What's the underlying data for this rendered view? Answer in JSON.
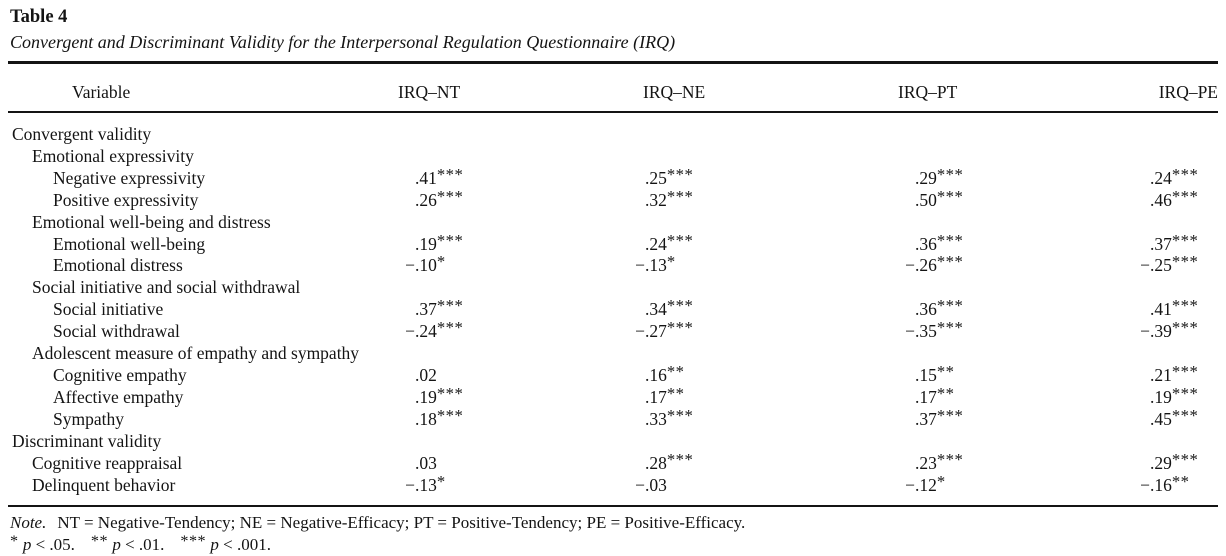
{
  "title": "Table 4",
  "caption": "Convergent and Discriminant Validity for the Interpersonal Regulation Questionnaire (IRQ)",
  "table": {
    "columns": [
      "Variable",
      "IRQ–NT",
      "IRQ–NE",
      "IRQ–PT",
      "IRQ–PE"
    ],
    "rows": [
      {
        "label": "Convergent validity",
        "indent": 0,
        "values": null
      },
      {
        "label": "Emotional expressivity",
        "indent": 1,
        "values": null
      },
      {
        "label": "Negative expressivity",
        "indent": 2,
        "values": [
          ".41***",
          ".25***",
          ".29***",
          ".24***"
        ]
      },
      {
        "label": "Positive expressivity",
        "indent": 2,
        "values": [
          ".26***",
          ".32***",
          ".50***",
          ".46***"
        ]
      },
      {
        "label": "Emotional well-being and distress",
        "indent": 1,
        "values": null
      },
      {
        "label": "Emotional well-being",
        "indent": 2,
        "values": [
          ".19***",
          ".24***",
          ".36***",
          ".37***"
        ]
      },
      {
        "label": "Emotional distress",
        "indent": 2,
        "values": [
          "−.10*",
          "−.13*",
          "−.26***",
          "−.25***"
        ]
      },
      {
        "label": "Social initiative and social withdrawal",
        "indent": 1,
        "values": null
      },
      {
        "label": "Social initiative",
        "indent": 2,
        "values": [
          ".37***",
          ".34***",
          ".36***",
          ".41***"
        ]
      },
      {
        "label": "Social withdrawal",
        "indent": 2,
        "values": [
          "−.24***",
          "−.27***",
          "−.35***",
          "−.39***"
        ]
      },
      {
        "label": "Adolescent measure of empathy and sympathy",
        "indent": 1,
        "values": null
      },
      {
        "label": "Cognitive empathy",
        "indent": 2,
        "values": [
          ".02",
          ".16**",
          ".15**",
          ".21***"
        ]
      },
      {
        "label": "Affective empathy",
        "indent": 2,
        "values": [
          ".19***",
          ".17**",
          ".17**",
          ".19***"
        ]
      },
      {
        "label": "Sympathy",
        "indent": 2,
        "values": [
          ".18***",
          ".33***",
          ".37***",
          ".45***"
        ]
      },
      {
        "label": "Discriminant validity",
        "indent": 0,
        "values": null
      },
      {
        "label": "Cognitive reappraisal",
        "indent": 1,
        "values": [
          ".03",
          ".28***",
          ".23***",
          ".29***"
        ]
      },
      {
        "label": "Delinquent behavior",
        "indent": 1,
        "values": [
          "−.13*",
          "−.03",
          "−.12*",
          "−.16**"
        ]
      }
    ]
  },
  "note": {
    "prefix": "Note.",
    "text": "NT = Negative-Tendency; NE = Negative-Efficacy; PT = Positive-Tendency; PE = Positive-Efficacy."
  },
  "significance_p": "p",
  "significance": [
    {
      "stars": "*",
      "rest": "< .05."
    },
    {
      "stars": "**",
      "rest": "< .01."
    },
    {
      "stars": "***",
      "rest": "< .001."
    }
  ],
  "colors": {
    "text": "#141414",
    "background": "#ffffff"
  }
}
